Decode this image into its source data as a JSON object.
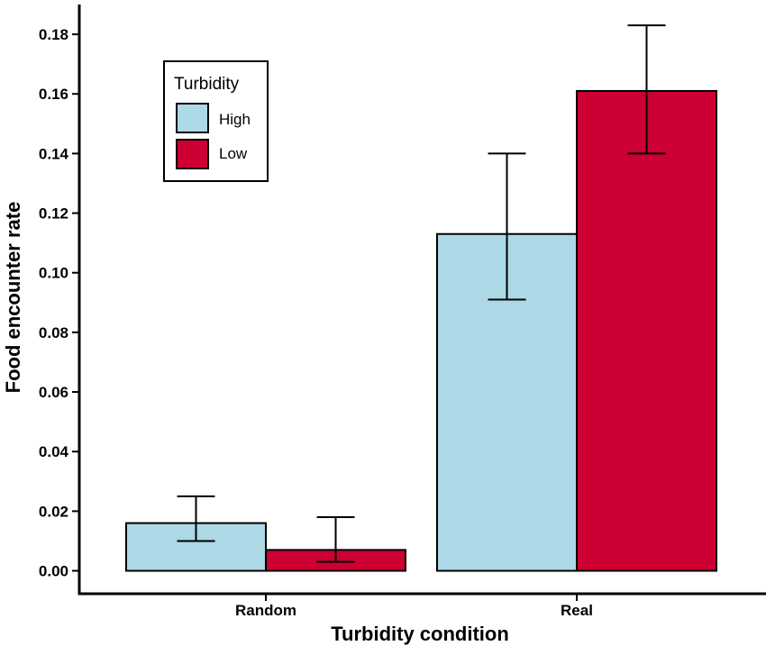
{
  "chart_data": {
    "type": "bar",
    "xlabel": "Turbidity condition",
    "ylabel": "Food encounter rate",
    "categories": [
      "Random",
      "Real"
    ],
    "ylim": [
      -0.008,
      0.19
    ],
    "yticks": [
      "0.00",
      "0.02",
      "0.04",
      "0.06",
      "0.08",
      "0.10",
      "0.12",
      "0.14",
      "0.16",
      "0.18"
    ],
    "grid": false,
    "legend": {
      "title": "Turbidity",
      "position": "top-left"
    },
    "series": [
      {
        "name": "High",
        "color": "#add8e6",
        "values": [
          0.016,
          0.113
        ],
        "error_low": [
          0.01,
          0.091
        ],
        "error_high": [
          0.025,
          0.14
        ]
      },
      {
        "name": "Low",
        "color": "#cc0033",
        "values": [
          0.007,
          0.161
        ],
        "error_low": [
          0.003,
          0.14
        ],
        "error_high": [
          0.018,
          0.183
        ]
      }
    ]
  }
}
